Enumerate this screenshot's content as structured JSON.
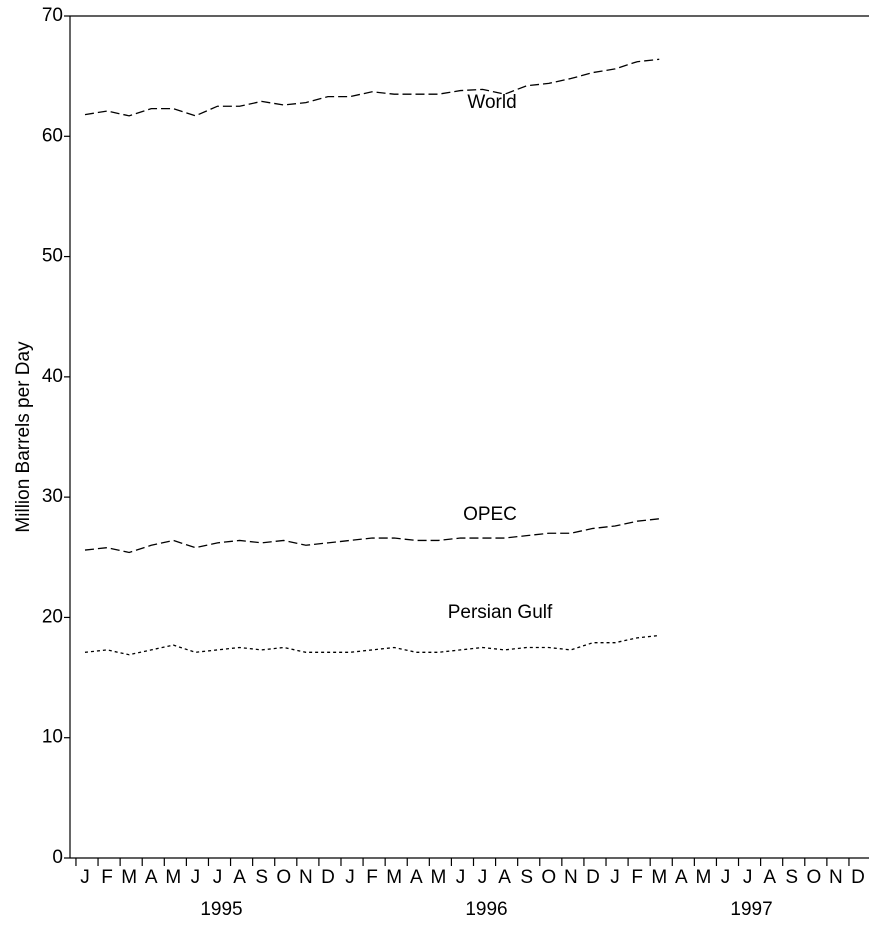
{
  "chart_data": {
    "type": "line",
    "y_label": "Million Barrels per Day",
    "categories": [
      "J",
      "F",
      "M",
      "A",
      "M",
      "J",
      "J",
      "A",
      "S",
      "O",
      "N",
      "D",
      "J",
      "F",
      "M",
      "A",
      "M",
      "J",
      "J",
      "A",
      "S",
      "O",
      "N",
      "D",
      "J",
      "F",
      "M",
      "A",
      "M",
      "J",
      "J",
      "A",
      "S",
      "O",
      "N",
      "D"
    ],
    "years": [
      "1995",
      "1996",
      "1997"
    ],
    "ylim": [
      0,
      70
    ],
    "yticks": [
      0,
      10,
      20,
      30,
      40,
      50,
      60,
      70
    ],
    "series": [
      {
        "name": "World",
        "color": "#000000",
        "line_style": "dashed",
        "values": [
          61.8,
          62.1,
          61.7,
          62.3,
          62.3,
          61.7,
          62.5,
          62.5,
          62.9,
          62.6,
          62.8,
          63.3,
          63.3,
          63.7,
          63.5,
          63.5,
          63.5,
          63.8,
          63.9,
          63.5,
          64.2,
          64.4,
          64.8,
          65.3,
          65.6,
          66.2,
          66.4,
          null,
          null,
          null,
          null,
          null,
          null,
          null,
          null,
          null
        ]
      },
      {
        "name": "OPEC",
        "color": "#000000",
        "line_style": "dashed",
        "values": [
          25.6,
          25.8,
          25.4,
          26.0,
          26.4,
          25.8,
          26.2,
          26.4,
          26.2,
          26.4,
          26.0,
          26.2,
          26.4,
          26.6,
          26.6,
          26.4,
          26.4,
          26.6,
          26.6,
          26.6,
          26.8,
          27.0,
          27.0,
          27.4,
          27.6,
          28.0,
          28.2,
          null,
          null,
          null,
          null,
          null,
          null,
          null,
          null,
          null
        ]
      },
      {
        "name": "Persian Gulf",
        "color": "#000000",
        "line_style": "dotted",
        "values": [
          17.1,
          17.3,
          16.9,
          17.3,
          17.7,
          17.1,
          17.3,
          17.5,
          17.3,
          17.5,
          17.1,
          17.1,
          17.1,
          17.3,
          17.5,
          17.1,
          17.1,
          17.3,
          17.5,
          17.3,
          17.5,
          17.5,
          17.3,
          17.9,
          17.9,
          18.3,
          18.5,
          null,
          null,
          null,
          null,
          null,
          null,
          null,
          null,
          null
        ]
      }
    ]
  }
}
